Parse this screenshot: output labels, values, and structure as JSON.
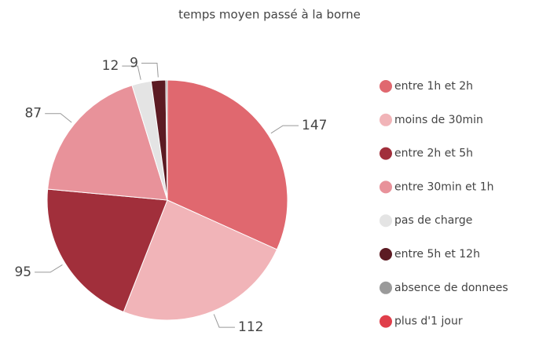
{
  "chart_data": {
    "type": "pie",
    "title": "temps moyen passé à la borne",
    "categories": [
      "entre 1h et 2h",
      "moins de 30min",
      "entre 2h et 5h",
      "entre 30min et 1h",
      "pas de charge",
      "entre 5h et 12h",
      "absence de donnees",
      "plus d'1 jour"
    ],
    "values": [
      147,
      112,
      95,
      87,
      12,
      9,
      1,
      0
    ],
    "colors": [
      "#e0686f",
      "#f1b4b8",
      "#a12f3b",
      "#e8929a",
      "#e4e4e4",
      "#5c1b23",
      "#9a9a9a",
      "#e03e4a"
    ],
    "legend": "right"
  }
}
